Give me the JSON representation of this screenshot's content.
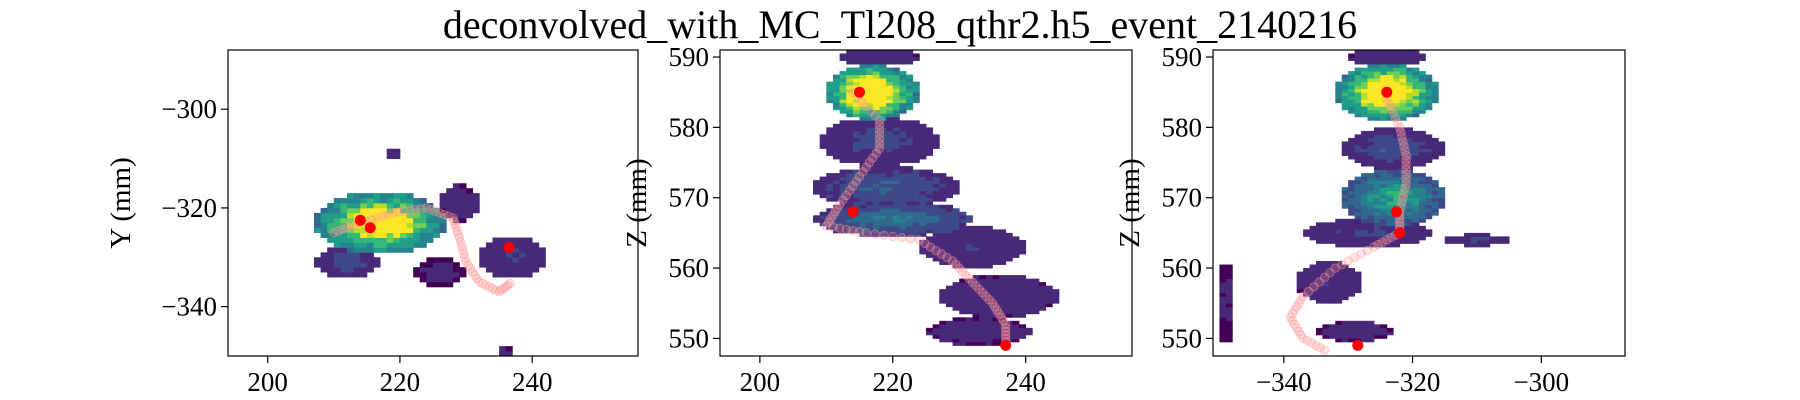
{
  "figure": {
    "title": "deconvolved_with_MC_Tl208_qthr2.h5_event_2140216"
  },
  "colors": {
    "colormap": [
      "#440154",
      "#482878",
      "#3e4989",
      "#31688e",
      "#26828e",
      "#1f9e89",
      "#35b779",
      "#6ece58",
      "#b5de2b",
      "#fde725"
    ],
    "true_hits": "#ff0000",
    "trajectory": "#ff9999"
  },
  "chart_data": [
    {
      "type": "heatmap",
      "xlabel": "",
      "ylabel": "Y (mm)",
      "xlim": [
        194,
        256
      ],
      "ylim": [
        -350,
        -288
      ],
      "xticks": [
        200,
        220,
        240
      ],
      "yticks": [
        -300,
        -320,
        -340
      ],
      "tick_labels_x": [
        "200",
        "220",
        "240"
      ],
      "tick_labels_y": [
        "−300",
        "−320",
        "−340"
      ],
      "blobs": [
        {
          "cx": 217,
          "cy": -323,
          "rx": 10,
          "ry": 6.5,
          "peak": 1.0,
          "hot": [
            217,
            -323
          ],
          "hot_r": 2.5
        },
        {
          "cx": 237,
          "cy": -330,
          "rx": 5.5,
          "ry": 4,
          "peak": 0.18
        },
        {
          "cx": 229,
          "cy": -319,
          "rx": 3,
          "ry": 4,
          "peak": 0.12
        },
        {
          "cx": 212,
          "cy": -331,
          "rx": 5,
          "ry": 3,
          "peak": 0.25
        },
        {
          "cx": 226,
          "cy": -333,
          "rx": 4,
          "ry": 3,
          "peak": 0.1
        },
        {
          "cx": 219,
          "cy": -309,
          "rx": 1.5,
          "ry": 1.5,
          "peak": 0.12
        },
        {
          "cx": 236,
          "cy": -349,
          "rx": 1,
          "ry": 1,
          "peak": 0.1
        }
      ],
      "bin_x": 1.0,
      "bin_y": 1.0,
      "trajectory": [
        [
          210,
          -325
        ],
        [
          214,
          -323
        ],
        [
          219,
          -321
        ],
        [
          224,
          -320
        ],
        [
          228,
          -322
        ],
        [
          229,
          -326
        ],
        [
          230,
          -331
        ],
        [
          232,
          -335
        ],
        [
          235,
          -337
        ],
        [
          237,
          -335
        ]
      ],
      "true_hits": [
        [
          214,
          -322.5
        ],
        [
          215.5,
          -324
        ],
        [
          236.5,
          -328
        ]
      ]
    },
    {
      "type": "heatmap",
      "xlabel": "",
      "ylabel": "Z (mm)",
      "xlim": [
        194,
        256
      ],
      "ylim": [
        547.5,
        591
      ],
      "xticks": [
        200,
        220,
        240
      ],
      "yticks": [
        550,
        560,
        570,
        580,
        590
      ],
      "tick_labels_x": [
        "200",
        "220",
        "240"
      ],
      "tick_labels_y": [
        "550",
        "560",
        "570",
        "580",
        "590"
      ],
      "blobs": [
        {
          "cx": 217,
          "cy": 585,
          "rx": 7,
          "ry": 4,
          "peak": 1.0,
          "hot": [
            216,
            585
          ],
          "hot_r": 2.5
        },
        {
          "cx": 218,
          "cy": 578,
          "rx": 9,
          "ry": 3.5,
          "peak": 0.22
        },
        {
          "cx": 219,
          "cy": 571.5,
          "rx": 11,
          "ry": 3,
          "peak": 0.3
        },
        {
          "cx": 220,
          "cy": 567,
          "rx": 12,
          "ry": 2.5,
          "peak": 0.38
        },
        {
          "cx": 232,
          "cy": 563,
          "rx": 8,
          "ry": 3,
          "peak": 0.16
        },
        {
          "cx": 236,
          "cy": 556,
          "rx": 9,
          "ry": 3,
          "peak": 0.14
        },
        {
          "cx": 233,
          "cy": 551,
          "rx": 8,
          "ry": 2,
          "peak": 0.12
        },
        {
          "cx": 218,
          "cy": 590,
          "rx": 6,
          "ry": 1.2,
          "peak": 0.15
        }
      ],
      "bin_x": 1.0,
      "bin_y": 0.5,
      "trajectory": [
        [
          214,
          585
        ],
        [
          218,
          581
        ],
        [
          218,
          577
        ],
        [
          215,
          573
        ],
        [
          212,
          569
        ],
        [
          210,
          566
        ],
        [
          216,
          565
        ],
        [
          224,
          564
        ],
        [
          229,
          561
        ],
        [
          232,
          558
        ],
        [
          235,
          555
        ],
        [
          237,
          552
        ],
        [
          237,
          549
        ]
      ],
      "true_hits": [
        [
          215,
          585
        ],
        [
          214,
          568
        ],
        [
          237,
          549
        ]
      ]
    },
    {
      "type": "heatmap",
      "xlabel": "",
      "ylabel": "Z (mm)",
      "xlim": [
        -351,
        -287
      ],
      "ylim": [
        547.5,
        591
      ],
      "xticks": [
        -340,
        -320,
        -300
      ],
      "yticks": [
        550,
        560,
        570,
        580,
        590
      ],
      "tick_labels_x": [
        "−340",
        "−320",
        "−300"
      ],
      "tick_labels_y": [
        "550",
        "560",
        "570",
        "580",
        "590"
      ],
      "blobs": [
        {
          "cx": -324,
          "cy": 585,
          "rx": 8,
          "ry": 4,
          "peak": 1.0,
          "hot": [
            -324,
            585
          ],
          "hot_r": 2.5
        },
        {
          "cx": -323,
          "cy": 577,
          "rx": 8,
          "ry": 3,
          "peak": 0.25
        },
        {
          "cx": -323,
          "cy": 570,
          "rx": 8,
          "ry": 4,
          "peak": 0.6
        },
        {
          "cx": -327,
          "cy": 565,
          "rx": 10,
          "ry": 2,
          "peak": 0.2
        },
        {
          "cx": -310,
          "cy": 564,
          "rx": 5,
          "ry": 0.8,
          "peak": 0.2
        },
        {
          "cx": -333,
          "cy": 558,
          "rx": 5,
          "ry": 3,
          "peak": 0.16
        },
        {
          "cx": -329,
          "cy": 551,
          "rx": 6,
          "ry": 1.5,
          "peak": 0.12
        },
        {
          "cx": -349,
          "cy": 555,
          "rx": 1.5,
          "ry": 6,
          "peak": 0.08
        },
        {
          "cx": -324,
          "cy": 590,
          "rx": 6,
          "ry": 1.2,
          "peak": 0.15
        }
      ],
      "bin_x": 1.0,
      "bin_y": 0.5,
      "trajectory": [
        [
          -324,
          584
        ],
        [
          -322,
          580
        ],
        [
          -321,
          576
        ],
        [
          -321,
          572
        ],
        [
          -322,
          568
        ],
        [
          -322,
          565
        ],
        [
          -326,
          563
        ],
        [
          -332,
          560
        ],
        [
          -337,
          556
        ],
        [
          -339,
          553
        ],
        [
          -337,
          550
        ],
        [
          -333,
          548
        ]
      ],
      "true_hits": [
        [
          -324,
          585
        ],
        [
          -322.5,
          568
        ],
        [
          -322,
          565
        ],
        [
          -328.5,
          549
        ]
      ]
    }
  ]
}
